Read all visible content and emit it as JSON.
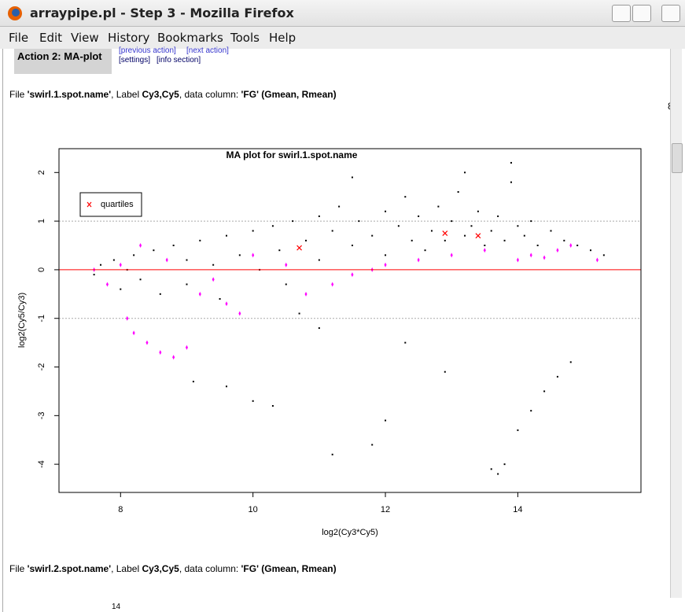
{
  "window": {
    "title": "arraypipe.pl - Step 3 - Mozilla Firefox"
  },
  "menu": [
    "File",
    "Edit",
    "View",
    "History",
    "Bookmarks",
    "Tools",
    "Help"
  ],
  "page": {
    "action_title": "Action 2: MA-plot",
    "links": [
      [
        "[previous action]",
        "[next action]"
      ],
      [
        "[settings]",
        "[info section]"
      ]
    ],
    "file_lines": [
      [
        "File ",
        "'swirl.1.spot.name'",
        ", Label ",
        "Cy3,Cy5",
        ", data column: ",
        "'FG' (Gmean, Rmean)"
      ],
      [
        "File ",
        "'swirl.2.spot.name'",
        ", Label ",
        "Cy3,Cy5",
        ", data column: ",
        "'FG' (Gmean, Rmean)"
      ]
    ],
    "clipped_labels": [
      "8",
      "14"
    ]
  },
  "chart_data": {
    "type": "scatter",
    "title": "MA plot for swirl.1.spot.name",
    "x_label": "log2(Cy3*Cy5)",
    "y_label": "log2(Cy5/Cy3)",
    "xlim": [
      7.07,
      15.86
    ],
    "ylim": [
      -4.58,
      2.49
    ],
    "xticks": [
      8,
      10,
      12,
      14
    ],
    "yticks": [
      -4,
      -3,
      -2,
      -1,
      0,
      1,
      2
    ],
    "dashed_lines": [
      -1,
      1
    ],
    "dashed_color": "#aaaaaa",
    "zero_line": 0,
    "zero_color": "#ff0000",
    "legend": "upper left",
    "series": [
      {
        "color": "#000000",
        "marker": "square",
        "x": [
          7.6,
          7.7,
          7.8,
          7.9,
          8.0,
          8.1,
          8.2,
          8.3,
          8.5,
          8.6,
          8.8,
          9.0,
          9.0,
          9.2,
          9.4,
          9.5,
          9.6,
          9.8,
          10.0,
          10.1,
          10.3,
          10.4,
          10.5,
          10.6,
          10.8,
          11.0,
          11.0,
          11.2,
          11.3,
          11.5,
          11.6,
          11.8,
          12.0,
          12.0,
          12.2,
          12.3,
          12.4,
          12.5,
          12.6,
          12.7,
          12.8,
          12.9,
          13.0,
          13.1,
          13.2,
          13.3,
          13.4,
          13.5,
          13.6,
          13.7,
          13.8,
          13.9,
          14.0,
          14.1,
          14.2,
          14.3,
          14.5,
          14.7,
          14.9,
          15.1,
          15.3,
          13.9,
          13.2,
          11.5,
          9.1,
          9.6,
          10.0,
          10.3,
          11.2,
          11.8,
          12.0,
          13.6,
          13.7,
          13.8,
          14.0,
          14.2,
          14.4,
          14.6,
          14.8,
          12.3,
          12.9,
          11.0,
          10.7
        ],
        "values": [
          -0.1,
          0.1,
          -0.3,
          0.2,
          -0.4,
          0.0,
          0.3,
          -0.2,
          0.4,
          -0.5,
          0.5,
          0.2,
          -0.3,
          0.6,
          0.1,
          -0.6,
          0.7,
          0.3,
          0.8,
          0.0,
          0.9,
          0.4,
          -0.3,
          1.0,
          0.6,
          1.1,
          0.2,
          0.8,
          1.3,
          0.5,
          1.0,
          0.7,
          1.2,
          0.3,
          0.9,
          1.5,
          0.6,
          1.1,
          0.4,
          0.8,
          1.3,
          0.6,
          1.0,
          1.6,
          0.7,
          0.9,
          1.2,
          0.5,
          0.8,
          1.1,
          0.6,
          1.8,
          0.9,
          0.7,
          1.0,
          0.5,
          0.8,
          0.6,
          0.5,
          0.4,
          0.3,
          2.2,
          2.0,
          1.9,
          -2.3,
          -2.4,
          -2.7,
          -2.8,
          -3.8,
          -3.6,
          -3.1,
          -4.1,
          -4.2,
          -4.0,
          -3.3,
          -2.9,
          -2.5,
          -2.2,
          -1.9,
          -1.5,
          -2.1,
          -1.2,
          -0.9
        ]
      },
      {
        "color": "#ff00ff",
        "marker": "diamond",
        "x": [
          7.6,
          7.8,
          8.0,
          8.1,
          8.2,
          8.3,
          8.4,
          8.6,
          8.7,
          8.8,
          9.0,
          9.2,
          9.4,
          9.6,
          9.8,
          10.0,
          10.5,
          10.8,
          11.2,
          11.5,
          11.8,
          12.0,
          12.5,
          13.0,
          13.5,
          14.0,
          14.2,
          14.4,
          14.6,
          14.8,
          15.2
        ],
        "values": [
          0.0,
          -0.3,
          0.1,
          -1.0,
          -1.3,
          0.5,
          -1.5,
          -1.7,
          0.2,
          -1.8,
          -1.6,
          -0.5,
          -0.2,
          -0.7,
          -0.9,
          0.3,
          0.1,
          -0.5,
          -0.3,
          -0.1,
          0.0,
          0.1,
          0.2,
          0.3,
          0.4,
          0.2,
          0.3,
          0.25,
          0.4,
          0.5,
          0.2
        ]
      },
      {
        "name": "quartiles",
        "color": "#ff0000",
        "marker": "x",
        "x": [
          10.7,
          12.9,
          13.4
        ],
        "values": [
          0.45,
          0.75,
          0.7
        ]
      }
    ]
  }
}
